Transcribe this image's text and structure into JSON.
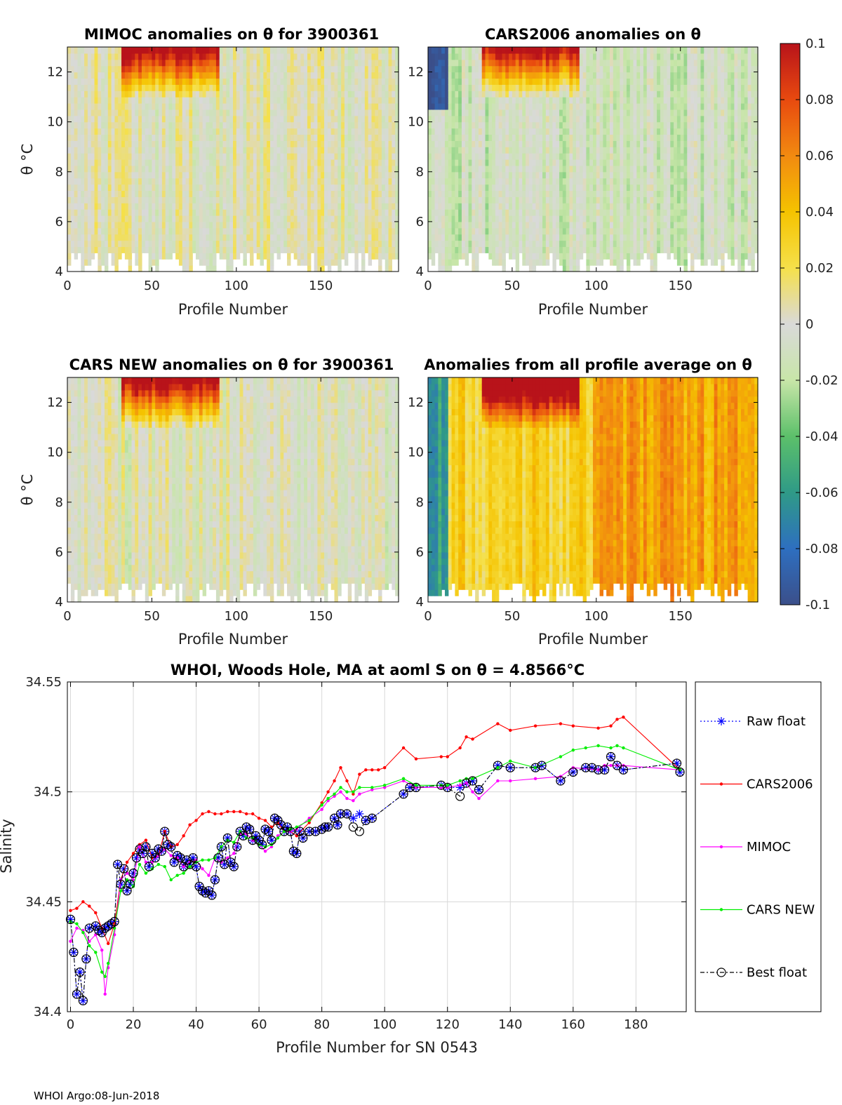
{
  "colormap": {
    "ticks": [
      "0.1",
      "0.08",
      "0.06",
      "0.04",
      "0.02",
      "0",
      "-0.02",
      "-0.04",
      "-0.06",
      "-0.08",
      "-0.1"
    ],
    "range": [
      -0.1,
      0.1
    ],
    "stops": [
      "#3b4f8a",
      "#2e6fc0",
      "#2f9a87",
      "#5cc06a",
      "#c8e6a8",
      "#d9d9d9",
      "#f5e04a",
      "#f5c300",
      "#f28a10",
      "#e84a0f",
      "#b8131a"
    ]
  },
  "panels": [
    {
      "title": "MIMOC anomalies on θ  for 3900361",
      "xlabel": "Profile Number",
      "ylabel": "θ °C",
      "xticks": [
        "0",
        "50",
        "100",
        "150"
      ],
      "yticks": [
        "4",
        "6",
        "8",
        "10",
        "12"
      ],
      "bias": 0.0
    },
    {
      "title": "CARS2006 anomalies on θ",
      "xlabel": "Profile Number",
      "ylabel": "",
      "xticks": [
        "0",
        "50",
        "100",
        "150"
      ],
      "yticks": [
        "4",
        "6",
        "8",
        "10",
        "12"
      ],
      "bias": -0.012
    },
    {
      "title": "CARS NEW anomalies on θ for 3900361",
      "xlabel": "Profile Number",
      "ylabel": "θ °C",
      "xticks": [
        "0",
        "50",
        "100",
        "150"
      ],
      "yticks": [
        "4",
        "6",
        "8",
        "10",
        "12"
      ],
      "bias": -0.003
    },
    {
      "title": "Anomalies from all profile average on θ",
      "xlabel": "Profile Number",
      "ylabel": "",
      "xticks": [
        "0",
        "50",
        "100",
        "150"
      ],
      "yticks": [
        "4",
        "6",
        "8",
        "10",
        "12"
      ],
      "bias": 0.03
    }
  ],
  "chart_data": {
    "type": "line",
    "title": "WHOI, Woods Hole, MA at aoml S on θ = 4.8566°C",
    "xlabel": "Profile Number for SN 0543",
    "ylabel": "Salinity",
    "xlim": [
      -1,
      196
    ],
    "ylim": [
      34.4,
      34.55
    ],
    "xticks": [
      "0",
      "20",
      "40",
      "60",
      "80",
      "100",
      "120",
      "140",
      "160",
      "180"
    ],
    "yticks": [
      "34.4",
      "34.45",
      "34.5",
      "34.55"
    ],
    "grid": true,
    "legend_position": "outside-right",
    "series": [
      {
        "name": "Raw float",
        "color": "#0000ff",
        "marker": "star",
        "dash": "2,3",
        "x": [
          0,
          1,
          2,
          3,
          4,
          5,
          6,
          8,
          9,
          10,
          11,
          12,
          13,
          14,
          15,
          16,
          17,
          18,
          19,
          20,
          21,
          22,
          23,
          24,
          25,
          26,
          27,
          28,
          29,
          30,
          31,
          32,
          33,
          34,
          35,
          36,
          37,
          38,
          39,
          40,
          41,
          42,
          43,
          44,
          45,
          46,
          47,
          48,
          49,
          50,
          51,
          52,
          53,
          54,
          55,
          56,
          57,
          58,
          59,
          60,
          61,
          62,
          63,
          64,
          65,
          66,
          67,
          68,
          69,
          70,
          71,
          72,
          73,
          74,
          76,
          78,
          80,
          81,
          82,
          84,
          85,
          86,
          88,
          90,
          92,
          94,
          96,
          106,
          108,
          110,
          118,
          120,
          124,
          126,
          128,
          130,
          136,
          140,
          148,
          150,
          156,
          160,
          164,
          166,
          168,
          170,
          172,
          174,
          176,
          193,
          194
        ],
        "y": [
          34.442,
          34.427,
          34.408,
          34.418,
          34.405,
          34.424,
          34.438,
          34.439,
          34.437,
          34.436,
          34.438,
          34.439,
          34.44,
          34.441,
          34.467,
          34.458,
          34.465,
          34.455,
          34.458,
          34.463,
          34.47,
          34.474,
          34.472,
          34.475,
          34.466,
          34.472,
          34.47,
          34.474,
          34.473,
          34.482,
          34.476,
          34.475,
          34.468,
          34.471,
          34.47,
          34.466,
          34.469,
          34.467,
          34.47,
          34.466,
          34.457,
          34.455,
          34.454,
          34.455,
          34.453,
          34.46,
          34.47,
          34.475,
          34.467,
          34.479,
          34.468,
          34.466,
          34.475,
          34.482,
          34.48,
          34.484,
          34.483,
          34.478,
          34.48,
          34.478,
          34.476,
          34.483,
          34.482,
          34.478,
          34.488,
          34.487,
          34.485,
          34.482,
          34.484,
          34.482,
          34.473,
          34.472,
          34.482,
          34.479,
          34.482,
          34.482,
          34.483,
          34.484,
          34.484,
          34.488,
          34.485,
          34.49,
          34.49,
          34.488,
          34.49,
          34.487,
          34.488,
          34.499,
          34.502,
          34.502,
          34.503,
          34.502,
          34.502,
          34.504,
          34.505,
          34.501,
          34.512,
          34.511,
          34.511,
          34.512,
          34.505,
          34.509,
          34.511,
          34.511,
          34.51,
          34.51,
          34.516,
          34.512,
          34.51,
          34.513,
          34.509
        ]
      },
      {
        "name": "CARS2006",
        "color": "#ff0000",
        "marker": "dot",
        "dash": "",
        "x": [
          0,
          2,
          4,
          6,
          8,
          10,
          12,
          14,
          16,
          18,
          20,
          22,
          24,
          26,
          28,
          30,
          32,
          34,
          36,
          38,
          40,
          42,
          44,
          46,
          48,
          50,
          52,
          54,
          56,
          58,
          60,
          62,
          64,
          66,
          68,
          70,
          72,
          76,
          80,
          82,
          84,
          86,
          88,
          90,
          92,
          94,
          96,
          98,
          100,
          106,
          110,
          118,
          120,
          124,
          126,
          128,
          136,
          140,
          148,
          156,
          160,
          168,
          172,
          174,
          176,
          194
        ],
        "y": [
          34.446,
          34.447,
          34.45,
          34.448,
          34.445,
          34.438,
          34.431,
          34.44,
          34.46,
          34.468,
          34.472,
          34.476,
          34.478,
          34.47,
          34.471,
          34.482,
          34.475,
          34.476,
          34.48,
          34.485,
          34.487,
          34.49,
          34.491,
          34.49,
          34.49,
          34.491,
          34.491,
          34.491,
          34.49,
          34.49,
          34.488,
          34.487,
          34.484,
          34.486,
          34.482,
          34.482,
          34.48,
          34.486,
          34.495,
          34.5,
          34.505,
          34.511,
          34.505,
          34.499,
          34.508,
          34.51,
          34.51,
          34.51,
          34.511,
          34.52,
          34.515,
          34.516,
          34.516,
          34.52,
          34.525,
          34.524,
          34.531,
          34.528,
          34.53,
          34.531,
          34.53,
          34.529,
          34.53,
          34.533,
          34.534,
          34.51
        ]
      },
      {
        "name": "MIMOC",
        "color": "#ff00ff",
        "marker": "dot",
        "dash": "",
        "x": [
          0,
          2,
          4,
          6,
          8,
          10,
          11,
          12,
          14,
          16,
          18,
          20,
          22,
          24,
          26,
          28,
          30,
          32,
          34,
          36,
          38,
          40,
          42,
          44,
          46,
          48,
          50,
          52,
          54,
          56,
          58,
          60,
          62,
          64,
          66,
          68,
          70,
          72,
          76,
          80,
          82,
          84,
          86,
          88,
          90,
          92,
          96,
          100,
          106,
          110,
          118,
          120,
          124,
          126,
          128,
          130,
          136,
          140,
          148,
          156,
          160,
          168,
          170,
          172,
          174,
          176,
          194
        ],
        "y": [
          34.432,
          34.438,
          34.437,
          34.432,
          34.435,
          34.428,
          34.408,
          34.42,
          34.435,
          34.46,
          34.463,
          34.46,
          34.475,
          34.468,
          34.468,
          34.471,
          34.474,
          34.471,
          34.47,
          34.466,
          34.468,
          34.469,
          34.465,
          34.462,
          34.47,
          34.468,
          34.47,
          34.472,
          34.481,
          34.481,
          34.478,
          34.476,
          34.473,
          34.475,
          34.48,
          34.482,
          34.482,
          34.483,
          34.488,
          34.492,
          34.496,
          34.498,
          34.5,
          34.497,
          34.496,
          34.499,
          34.501,
          34.502,
          34.505,
          34.502,
          34.502,
          34.502,
          34.503,
          34.504,
          34.5,
          34.497,
          34.505,
          34.505,
          34.506,
          34.507,
          34.511,
          34.51,
          34.512,
          34.512,
          34.512,
          34.512,
          34.51
        ]
      },
      {
        "name": "CARS NEW",
        "color": "#00ee00",
        "marker": "dot",
        "dash": "",
        "x": [
          0,
          2,
          4,
          6,
          8,
          10,
          11,
          12,
          14,
          16,
          18,
          20,
          22,
          24,
          26,
          28,
          30,
          32,
          34,
          36,
          38,
          40,
          42,
          44,
          46,
          48,
          50,
          52,
          54,
          56,
          58,
          60,
          62,
          64,
          66,
          68,
          70,
          72,
          76,
          80,
          82,
          84,
          86,
          88,
          90,
          92,
          96,
          100,
          106,
          110,
          118,
          120,
          124,
          126,
          128,
          136,
          140,
          148,
          156,
          160,
          164,
          168,
          172,
          174,
          176,
          194
        ],
        "y": [
          34.441,
          34.44,
          34.436,
          34.43,
          34.427,
          34.418,
          34.416,
          34.422,
          34.438,
          34.455,
          34.46,
          34.457,
          34.467,
          34.463,
          34.465,
          34.467,
          34.466,
          34.46,
          34.462,
          34.463,
          34.466,
          34.468,
          34.469,
          34.469,
          34.47,
          34.475,
          34.478,
          34.477,
          34.482,
          34.479,
          34.479,
          34.476,
          34.475,
          34.476,
          34.479,
          34.482,
          34.483,
          34.484,
          34.487,
          34.494,
          34.497,
          34.499,
          34.502,
          34.5,
          34.5,
          34.502,
          34.502,
          34.503,
          34.506,
          34.503,
          34.503,
          34.503,
          34.505,
          34.506,
          34.506,
          34.511,
          34.514,
          34.511,
          34.516,
          34.519,
          34.52,
          34.521,
          34.52,
          34.521,
          34.52,
          34.51
        ]
      },
      {
        "name": "Best float",
        "color": "#000000",
        "marker": "circle",
        "dash": "6,3,2,3",
        "x": [
          0,
          1,
          2,
          3,
          4,
          5,
          6,
          8,
          9,
          10,
          11,
          12,
          13,
          14,
          15,
          16,
          17,
          18,
          19,
          20,
          21,
          22,
          23,
          24,
          25,
          26,
          27,
          28,
          29,
          30,
          31,
          32,
          33,
          34,
          35,
          36,
          37,
          38,
          39,
          40,
          41,
          42,
          43,
          44,
          45,
          46,
          47,
          48,
          49,
          50,
          51,
          52,
          53,
          54,
          55,
          56,
          57,
          58,
          59,
          60,
          61,
          62,
          63,
          64,
          65,
          66,
          67,
          68,
          69,
          70,
          71,
          72,
          73,
          74,
          76,
          78,
          80,
          81,
          82,
          84,
          85,
          86,
          88,
          90,
          92,
          94,
          96,
          106,
          108,
          110,
          118,
          120,
          124,
          126,
          128,
          130,
          136,
          140,
          148,
          150,
          156,
          160,
          164,
          166,
          168,
          170,
          172,
          174,
          176,
          193,
          194
        ],
        "y": [
          34.442,
          34.427,
          34.408,
          34.418,
          34.405,
          34.424,
          34.438,
          34.439,
          34.437,
          34.436,
          34.438,
          34.439,
          34.44,
          34.441,
          34.467,
          34.458,
          34.465,
          34.455,
          34.458,
          34.463,
          34.47,
          34.474,
          34.472,
          34.475,
          34.466,
          34.472,
          34.47,
          34.474,
          34.473,
          34.482,
          34.476,
          34.475,
          34.468,
          34.471,
          34.47,
          34.466,
          34.469,
          34.467,
          34.47,
          34.466,
          34.457,
          34.455,
          34.454,
          34.455,
          34.453,
          34.46,
          34.47,
          34.475,
          34.467,
          34.479,
          34.468,
          34.466,
          34.475,
          34.482,
          34.48,
          34.484,
          34.483,
          34.478,
          34.48,
          34.478,
          34.476,
          34.483,
          34.482,
          34.478,
          34.488,
          34.487,
          34.485,
          34.482,
          34.484,
          34.482,
          34.473,
          34.472,
          34.482,
          34.479,
          34.482,
          34.482,
          34.483,
          34.484,
          34.484,
          34.488,
          34.485,
          34.49,
          34.49,
          34.484,
          34.482,
          34.487,
          34.488,
          34.499,
          34.502,
          34.502,
          34.503,
          34.502,
          34.498,
          34.504,
          34.505,
          34.501,
          34.512,
          34.511,
          34.511,
          34.512,
          34.505,
          34.509,
          34.511,
          34.511,
          34.51,
          34.51,
          34.516,
          34.512,
          34.51,
          34.513,
          34.509
        ]
      }
    ]
  },
  "footer": "WHOI Argo:08-Jun-2018"
}
